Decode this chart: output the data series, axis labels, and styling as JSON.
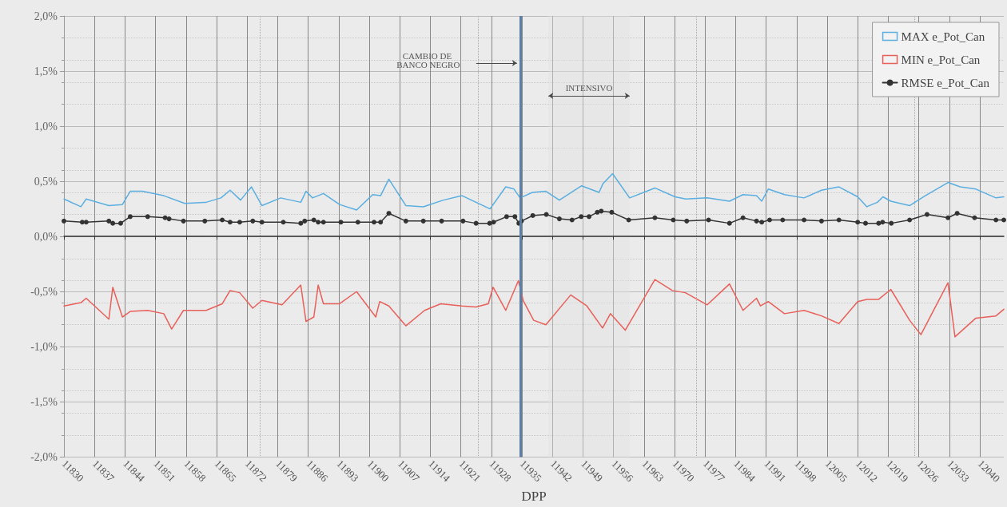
{
  "chart_data": {
    "type": "line",
    "xlabel": "DPP",
    "xlim": [
      11830,
      12045.5
    ],
    "xticks": [
      11830,
      11837,
      11844,
      11851,
      11858,
      11865,
      11872,
      11879,
      11886,
      11893,
      11900,
      11907,
      11914,
      11921,
      11928,
      11935,
      11942,
      11949,
      11956,
      11963,
      11970,
      11977,
      11984,
      11991,
      11998,
      12005,
      12012,
      12019,
      12026,
      12033,
      12040
    ],
    "ylim": [
      -2,
      2
    ],
    "yticks": [
      {
        "value": -2,
        "label": "-2,0%"
      },
      {
        "value": -1.5,
        "label": "-1,5%"
      },
      {
        "value": -1,
        "label": "-1,0%"
      },
      {
        "value": -0.5,
        "label": "-0,5%"
      },
      {
        "value": 0,
        "label": "0,0%"
      },
      {
        "value": 0.5,
        "label": "0,5%"
      },
      {
        "value": 1,
        "label": "1,0%"
      },
      {
        "value": 1.5,
        "label": "1,5%"
      },
      {
        "value": 2,
        "label": "2,0%"
      }
    ],
    "grid": true,
    "legend": "top right",
    "line_style": "solid",
    "ref_lines": [
      {
        "axis": "x",
        "value": 11934.6,
        "color": "#5a7fa8"
      }
    ],
    "annotations": [
      "CAMBIO DE BANCO NEGRO"
    ],
    "bands": [
      {
        "axis": "x",
        "from": 11941.1,
        "to": 11959.7,
        "label": "INTENSIVO",
        "color": "#e3e3e3"
      }
    ],
    "series": [
      {
        "name": "MAX e_Pot_Can",
        "color": "#5aaee0",
        "marker": "none",
        "x": [
          11830,
          11833.9,
          11835.1,
          11840.3,
          11843.4,
          11845.2,
          11848,
          11852.9,
          11857.7,
          11862.6,
          11866,
          11868.1,
          11870.5,
          11873,
          11875.4,
          11879.7,
          11884.3,
          11885.5,
          11887,
          11889.5,
          11893.2,
          11897.1,
          11900.8,
          11902.6,
          11904.5,
          11908.4,
          11912.4,
          11917,
          11921.3,
          11927.7,
          11931.3,
          11933.2,
          11934.6,
          11937.4,
          11940.5,
          11943.6,
          11948.7,
          11952.7,
          11953.6,
          11955.8,
          11959.7,
          11965.5,
          11970.1,
          11972.6,
          11977.5,
          11982.6,
          11985.7,
          11988.8,
          11990,
          11991.5,
          11995.2,
          11999.7,
          12003.7,
          12007.7,
          12012,
          12014.1,
          12016.5,
          12017.8,
          12019.6,
          12023.9,
          12027.5,
          12032.7,
          12035.5,
          12039.1,
          12043.7,
          12045.5
        ],
        "values": [
          0.34,
          0.27,
          0.34,
          0.28,
          0.29,
          0.41,
          0.41,
          0.37,
          0.3,
          0.31,
          0.35,
          0.42,
          0.33,
          0.45,
          0.28,
          0.35,
          0.31,
          0.41,
          0.35,
          0.39,
          0.29,
          0.24,
          0.38,
          0.37,
          0.52,
          0.28,
          0.27,
          0.33,
          0.37,
          0.25,
          0.45,
          0.43,
          0.35,
          0.4,
          0.41,
          0.33,
          0.46,
          0.4,
          0.48,
          0.57,
          0.35,
          0.44,
          0.36,
          0.34,
          0.35,
          0.32,
          0.38,
          0.37,
          0.32,
          0.43,
          0.38,
          0.35,
          0.42,
          0.45,
          0.36,
          0.27,
          0.31,
          0.36,
          0.32,
          0.28,
          0.37,
          0.49,
          0.45,
          0.43,
          0.35,
          0.36
        ]
      },
      {
        "name": "MIN e_Pot_Can",
        "color": "#e8605a",
        "marker": "none",
        "x": [
          11830,
          11833.9,
          11835.1,
          11840.3,
          11841.2,
          11843.4,
          11845.2,
          11849.2,
          11852.9,
          11854.7,
          11857.4,
          11862.6,
          11866.3,
          11868.1,
          11870.3,
          11873.3,
          11875.4,
          11880,
          11884.3,
          11885.5,
          11887.3,
          11888.3,
          11889.5,
          11893.2,
          11897.1,
          11901.5,
          11902.4,
          11904.5,
          11908.4,
          11912.7,
          11916.4,
          11921.3,
          11924.5,
          11927.3,
          11928.4,
          11931.3,
          11934.2,
          11935.3,
          11937.7,
          11940.5,
          11946.2,
          11949.9,
          11953.5,
          11955.3,
          11958.7,
          11965.5,
          11969.5,
          11972.5,
          11977.5,
          11982.6,
          11985.7,
          11988.8,
          11989.7,
          11991.5,
          11995.2,
          11999.7,
          12003.7,
          12007.7,
          12012,
          12014.1,
          12016.8,
          12019.6,
          12023.9,
          12026.5,
          12032.7,
          12034.3,
          12039.1,
          12043.7,
          12045.5
        ],
        "values": [
          -0.63,
          -0.6,
          -0.56,
          -0.75,
          -0.46,
          -0.73,
          -0.68,
          -0.67,
          -0.7,
          -0.84,
          -0.67,
          -0.67,
          -0.61,
          -0.49,
          -0.51,
          -0.65,
          -0.58,
          -0.62,
          -0.44,
          -0.77,
          -0.73,
          -0.44,
          -0.61,
          -0.61,
          -0.5,
          -0.73,
          -0.59,
          -0.63,
          -0.81,
          -0.67,
          -0.61,
          -0.63,
          -0.64,
          -0.61,
          -0.46,
          -0.67,
          -0.4,
          -0.58,
          -0.76,
          -0.8,
          -0.53,
          -0.63,
          -0.83,
          -0.7,
          -0.85,
          -0.39,
          -0.49,
          -0.51,
          -0.62,
          -0.43,
          -0.67,
          -0.56,
          -0.63,
          -0.59,
          -0.7,
          -0.67,
          -0.72,
          -0.79,
          -0.59,
          -0.57,
          -0.57,
          -0.48,
          -0.76,
          -0.89,
          -0.42,
          -0.91,
          -0.74,
          -0.72,
          -0.66
        ]
      },
      {
        "name": "RMSE e_Pot_Can",
        "color": "#333333",
        "marker": "circle",
        "x": [
          11830,
          11834.2,
          11835.1,
          11840.3,
          11841.2,
          11843,
          11845.2,
          11849.2,
          11853.2,
          11854.1,
          11857.4,
          11862.3,
          11866.3,
          11868.1,
          11870.3,
          11873.3,
          11875.4,
          11880.3,
          11884.3,
          11885.2,
          11887.3,
          11888.3,
          11889.5,
          11893.5,
          11897.4,
          11901.1,
          11902.6,
          11904.5,
          11908.4,
          11912.4,
          11916.6,
          11921.5,
          11924.5,
          11927.6,
          11928.5,
          11931.5,
          11933.4,
          11934.3,
          11934.9,
          11937.5,
          11940.6,
          11943.6,
          11946.5,
          11948.6,
          11950.4,
          11952.3,
          11953.2,
          11955.6,
          11959.5,
          11965.5,
          11969.7,
          11972.8,
          11977.8,
          11982.6,
          11985.7,
          11988.8,
          11990,
          11991.8,
          11994.8,
          11999.7,
          12003.7,
          12007.7,
          12012,
          12013.8,
          12016.8,
          12017.7,
          12019.7,
          12023.9,
          12027.9,
          12032.7,
          12034.8,
          12038.8,
          12043.7,
          12045.5
        ],
        "values": [
          0.14,
          0.13,
          0.13,
          0.14,
          0.12,
          0.12,
          0.18,
          0.18,
          0.17,
          0.16,
          0.14,
          0.14,
          0.15,
          0.13,
          0.13,
          0.14,
          0.13,
          0.13,
          0.12,
          0.14,
          0.15,
          0.13,
          0.13,
          0.13,
          0.13,
          0.13,
          0.13,
          0.21,
          0.14,
          0.14,
          0.14,
          0.14,
          0.12,
          0.12,
          0.13,
          0.18,
          0.18,
          0.12,
          0.14,
          0.19,
          0.2,
          0.16,
          0.15,
          0.18,
          0.18,
          0.22,
          0.23,
          0.22,
          0.15,
          0.17,
          0.15,
          0.14,
          0.15,
          0.12,
          0.17,
          0.14,
          0.13,
          0.15,
          0.15,
          0.15,
          0.14,
          0.15,
          0.13,
          0.12,
          0.12,
          0.13,
          0.12,
          0.15,
          0.2,
          0.17,
          0.21,
          0.17,
          0.15,
          0.15
        ]
      }
    ]
  }
}
